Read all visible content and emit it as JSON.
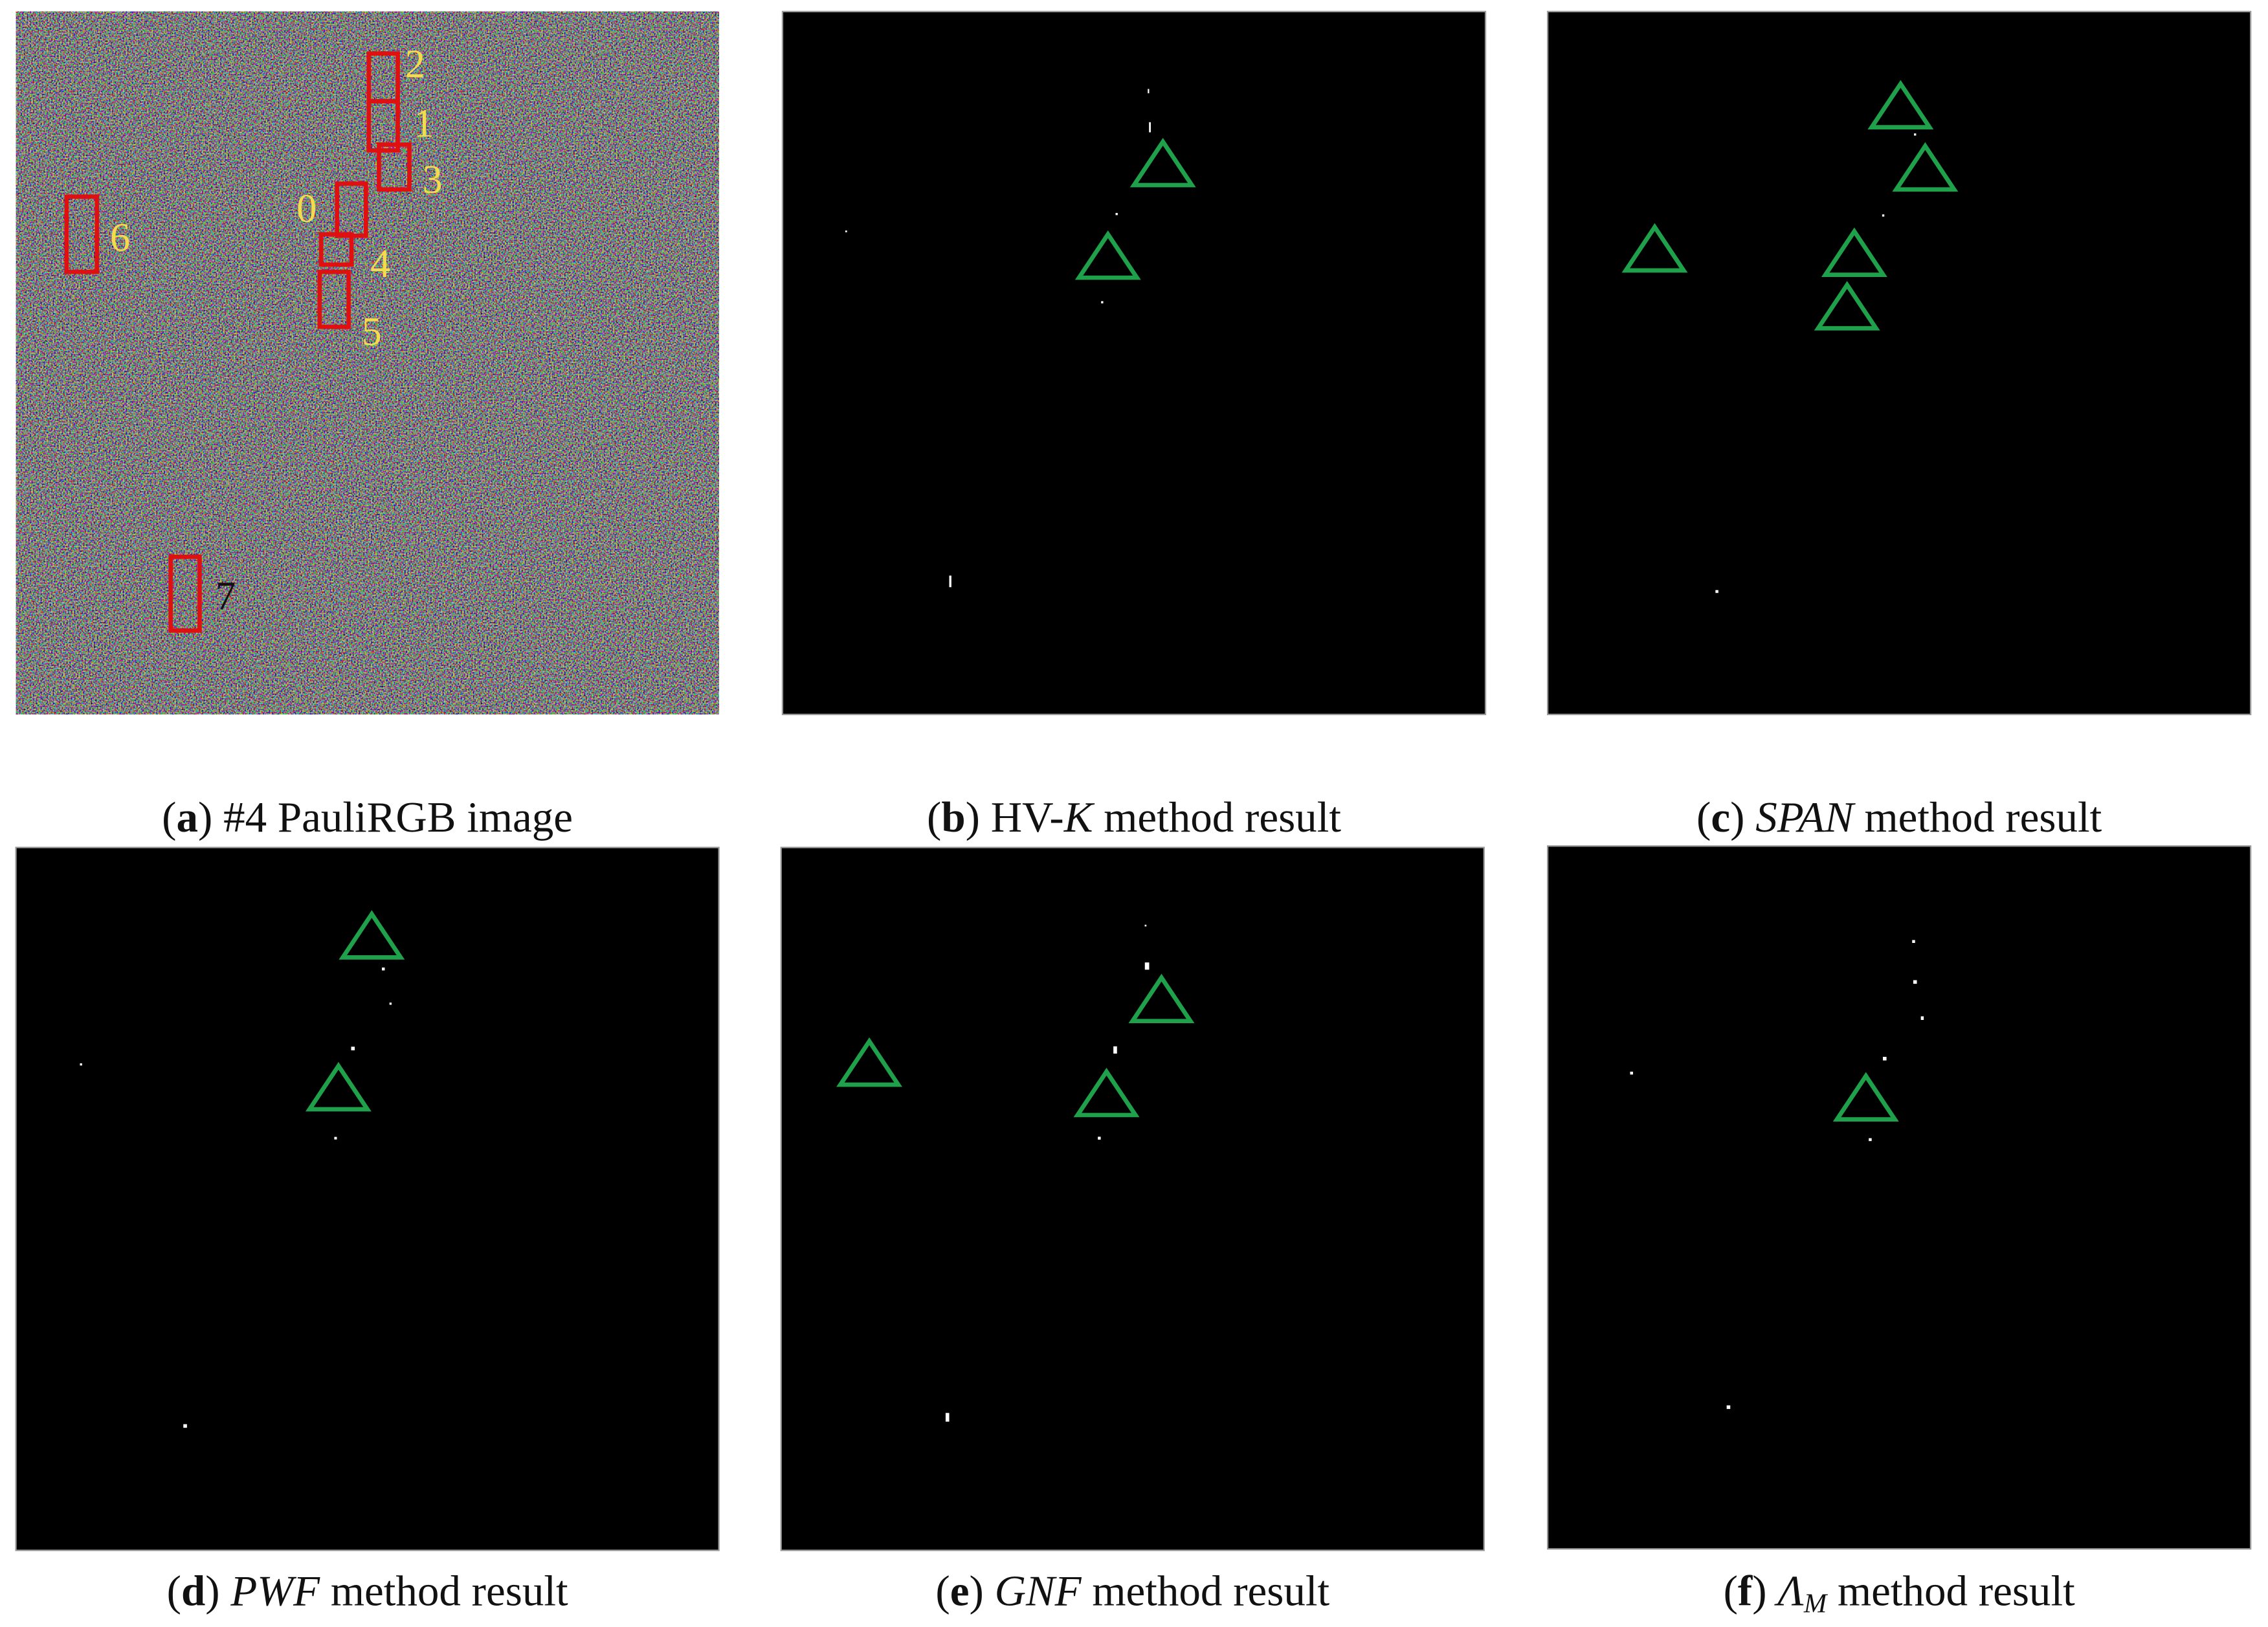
{
  "panels": [
    {
      "caption": [
        {
          "text": "(",
          "style": "normal"
        },
        {
          "text": "a",
          "style": "bold"
        },
        {
          "text": ") #4 PauliRGB image",
          "style": "normal"
        }
      ],
      "markers": [
        {
          "text": "2",
          "color": "#f2dc4c"
        },
        {
          "text": "1",
          "color": "#f2dc4c"
        },
        {
          "text": "3",
          "color": "#f2dc4c"
        },
        {
          "text": "0",
          "color": "#f2dc4c"
        },
        {
          "text": "4",
          "color": "#f2dc4c"
        },
        {
          "text": "5",
          "color": "#f2dc4c"
        },
        {
          "text": "6",
          "color": "#f2dc4c"
        },
        {
          "text": "7",
          "color": "#111111"
        }
      ]
    },
    {
      "caption": [
        {
          "text": "(",
          "style": "normal"
        },
        {
          "text": "b",
          "style": "bold"
        },
        {
          "text": ") HV-",
          "style": "normal"
        },
        {
          "text": "K",
          "style": "italic"
        },
        {
          "text": " method result",
          "style": "normal"
        }
      ]
    },
    {
      "caption": [
        {
          "text": "(",
          "style": "normal"
        },
        {
          "text": "c",
          "style": "bold"
        },
        {
          "text": ") ",
          "style": "normal"
        },
        {
          "text": "SPAN",
          "style": "italic"
        },
        {
          "text": " method result",
          "style": "normal"
        }
      ]
    },
    {
      "caption": [
        {
          "text": "(",
          "style": "normal"
        },
        {
          "text": "d",
          "style": "bold"
        },
        {
          "text": ") ",
          "style": "normal"
        },
        {
          "text": "PWF",
          "style": "italic"
        },
        {
          "text": " method result",
          "style": "normal"
        }
      ]
    },
    {
      "caption": [
        {
          "text": "(",
          "style": "normal"
        },
        {
          "text": "e",
          "style": "bold"
        },
        {
          "text": ") ",
          "style": "normal"
        },
        {
          "text": "GNF",
          "style": "italic"
        },
        {
          "text": " method result",
          "style": "normal"
        }
      ]
    },
    {
      "caption": [
        {
          "text": "(",
          "style": "normal"
        },
        {
          "text": "f",
          "style": "bold"
        },
        {
          "text": ") ",
          "style": "normal"
        },
        {
          "text": "Λ",
          "style": "italic"
        },
        {
          "text": "M",
          "style": "subscript"
        },
        {
          "text": " method result",
          "style": "normal"
        }
      ]
    }
  ]
}
